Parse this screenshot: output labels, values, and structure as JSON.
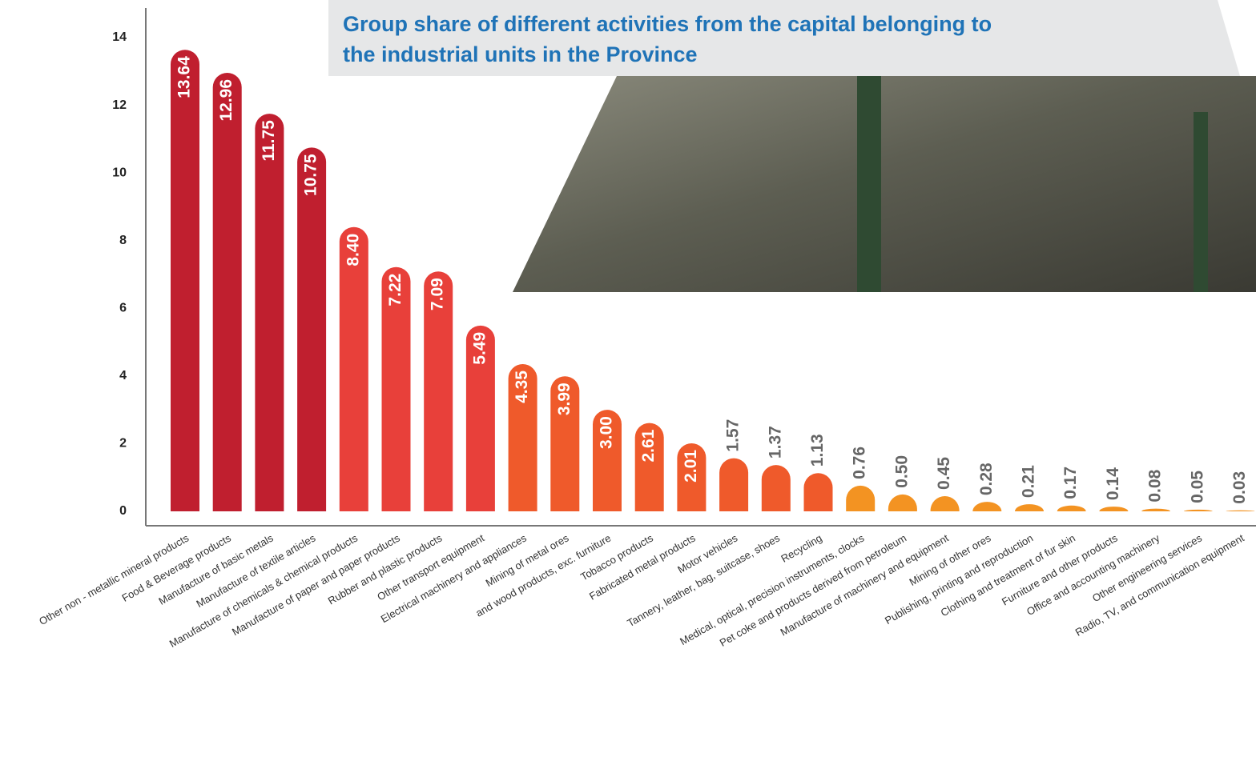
{
  "chart_data": {
    "type": "bar",
    "title_lines": [
      "Group share of different activities from the capital belonging to",
      "the industrial units in the Province"
    ],
    "categories": [
      "Other non - metallic mineral products",
      "Food & Beverage products",
      "Manufacture of basic metals",
      "Manufacture of textile articles",
      "Manufacture of chemicals & chemical products",
      "Manufacture of paper and paper products",
      "Rubber and plastic products",
      "Other transport equipment",
      "Electrical machinery and appliances",
      "Mining of metal ores",
      "and wood products, exc. furniture",
      "Tobacco products",
      "Fabricated metal products",
      "Motor vehicles",
      "Tannery, leather, bag, suitcase, shoes",
      "Recycling",
      "Medical, optical, precision instruments, clocks",
      "Pet coke and products derived from petroleum",
      "Manufacture of machinery and equipment",
      "Mining of other ores",
      "Publishing, printing and reproduction",
      "Clothing and treatment of fur skin",
      "Furniture and other products",
      "Office and accounting machinery",
      "Other engineering services",
      "Radio, TV, and communication equipment"
    ],
    "values": [
      13.64,
      12.96,
      11.75,
      10.75,
      8.4,
      7.22,
      7.09,
      5.49,
      4.35,
      3.99,
      3.0,
      2.61,
      2.01,
      1.57,
      1.37,
      1.13,
      0.76,
      0.5,
      0.45,
      0.28,
      0.21,
      0.17,
      0.14,
      0.08,
      0.05,
      0.03
    ],
    "value_labels": [
      "13.64",
      "12.96",
      "11.75",
      "10.75",
      "8.40",
      "7.22",
      "7.09",
      "5.49",
      "4.35",
      "3.99",
      "3.00",
      "2.61",
      "2.01",
      "1.57",
      "1.37",
      "1.13",
      "0.76",
      "0.50",
      "0.45",
      "0.28",
      "0.21",
      "0.17",
      "0.14",
      "0.08",
      "0.05",
      "0.03"
    ],
    "colors": [
      "#c01f2f",
      "#c01f2f",
      "#c01f2f",
      "#c01f2f",
      "#e8403a",
      "#e8403a",
      "#e8403a",
      "#e8403a",
      "#ef5a2b",
      "#ef5a2b",
      "#ef5a2b",
      "#ef5a2b",
      "#ef5a2b",
      "#ef5a2b",
      "#ef5a2b",
      "#ef5a2b",
      "#f39322",
      "#f39322",
      "#f39322",
      "#f39322",
      "#f39322",
      "#f39322",
      "#f39322",
      "#f39322",
      "#f39322",
      "#f39322"
    ],
    "ylim": [
      0,
      14
    ],
    "yticks": [
      0,
      2,
      4,
      6,
      8,
      10,
      12,
      14
    ]
  }
}
